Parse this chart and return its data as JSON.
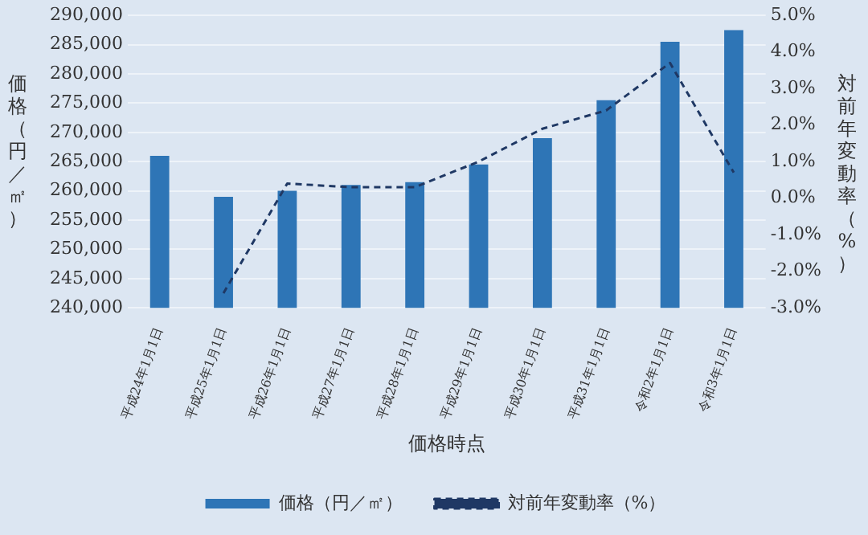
{
  "chart_data": {
    "type": "bar",
    "xlabel": "価格時点",
    "ylabel": "価格（円／㎡）",
    "y2label": "対前年変動率（%）",
    "categories": [
      "平成24年1月1日",
      "平成25年1月1日",
      "平成26年1月1日",
      "平成27年1月1日",
      "平成28年1月1日",
      "平成29年1月1日",
      "平成30年1月1日",
      "平成31年1月1日",
      "令和2年1月1日",
      "令和3年1月1日"
    ],
    "series": [
      {
        "name": "価格（円／㎡）",
        "color": "#2e75b6",
        "values": [
          266000,
          259000,
          260000,
          261000,
          261500,
          264500,
          269000,
          275500,
          285500,
          287500
        ]
      },
      {
        "name": "対前年変動率（%）",
        "type": "line",
        "axis": "y2",
        "color": "#1f3864",
        "line_style": "dashed",
        "marker": "none",
        "values": [
          null,
          -2.6,
          0.4,
          0.3,
          0.3,
          1.0,
          1.9,
          2.4,
          3.7,
          0.7
        ]
      }
    ],
    "ylim": [
      240000,
      290000
    ],
    "yticks": [
      {
        "value": 240000,
        "label": "240,000"
      },
      {
        "value": 245000,
        "label": "245,000"
      },
      {
        "value": 250000,
        "label": "250,000"
      },
      {
        "value": 255000,
        "label": "255,000"
      },
      {
        "value": 260000,
        "label": "260,000"
      },
      {
        "value": 265000,
        "label": "265,000"
      },
      {
        "value": 270000,
        "label": "270,000"
      },
      {
        "value": 275000,
        "label": "275,000"
      },
      {
        "value": 280000,
        "label": "280,000"
      },
      {
        "value": 285000,
        "label": "285,000"
      },
      {
        "value": 290000,
        "label": "290,000"
      }
    ],
    "y2lim": [
      -3,
      5
    ],
    "y2ticks": [
      {
        "value": -3,
        "label": "-3.0%"
      },
      {
        "value": -2,
        "label": "-2.0%"
      },
      {
        "value": -1,
        "label": "-1.0%"
      },
      {
        "value": 0,
        "label": "0.0%"
      },
      {
        "value": 1,
        "label": "1.0%"
      },
      {
        "value": 2,
        "label": "2.0%"
      },
      {
        "value": 3,
        "label": "3.0%"
      },
      {
        "value": 4,
        "label": "4.0%"
      },
      {
        "value": 5,
        "label": "5.0%"
      }
    ],
    "grid": "y",
    "legend": "bottom"
  }
}
